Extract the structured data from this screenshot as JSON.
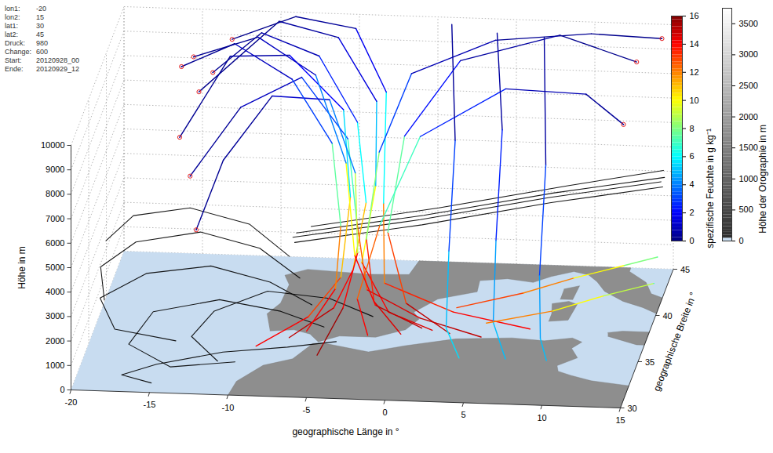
{
  "chart_data": {
    "type": "trajectory",
    "xlabel": "geographische Länge in °",
    "ylabel": "geographische Breite in °",
    "zlabel": "Höhe in m",
    "xlim": [
      -20,
      15
    ],
    "ylim": [
      30,
      45
    ],
    "zlim": [
      0,
      10000
    ],
    "xticks": [
      -20,
      -15,
      -10,
      -5,
      0,
      5,
      10,
      15
    ],
    "yticks": [
      30,
      35,
      40,
      45
    ],
    "zticks": [
      0,
      1000,
      2000,
      3000,
      4000,
      5000,
      6000,
      7000,
      8000,
      9000,
      10000
    ],
    "grid": true,
    "info": [
      {
        "label": "lon1:",
        "value": "-20"
      },
      {
        "label": "lon2:",
        "value": "15"
      },
      {
        "label": "lat1:",
        "value": "30"
      },
      {
        "label": "lat2:",
        "value": "45"
      },
      {
        "label": "Druck:",
        "value": "980"
      },
      {
        "label": "Change:",
        "value": "600"
      },
      {
        "label": "Start:",
        "value": "20120928_00"
      },
      {
        "label": "Ende:",
        "value": "20120929_12"
      }
    ],
    "colorbar": {
      "label": "spezifische Feuchte in g kg⁻¹",
      "lim": [
        0,
        16
      ],
      "ticks": [
        0,
        2,
        4,
        6,
        8,
        10,
        12,
        14,
        16
      ]
    },
    "orography_colorbar": {
      "label": "Höhe der Orographie in m",
      "lim": [
        0,
        3750
      ],
      "ticks": [
        0,
        500,
        1000,
        1500,
        2000,
        2500,
        3000,
        3500
      ]
    },
    "land": [
      [
        [
          -10,
          30
        ],
        [
          -9.8,
          31.5
        ],
        [
          -8.5,
          33.3
        ],
        [
          -6.8,
          34.1
        ],
        [
          -5.9,
          35.8
        ],
        [
          -5.3,
          35.9
        ],
        [
          -2.2,
          35.1
        ],
        [
          0,
          35.9
        ],
        [
          3,
          36.8
        ],
        [
          6.5,
          37.1
        ],
        [
          8.6,
          36.9
        ],
        [
          10.3,
          37.3
        ],
        [
          11,
          36.9
        ],
        [
          10.5,
          36.2
        ],
        [
          11.1,
          35.2
        ],
        [
          10,
          34.3
        ],
        [
          10.2,
          33.7
        ],
        [
          11.1,
          33.3
        ],
        [
          12.5,
          32.8
        ],
        [
          15,
          32.4
        ],
        [
          15,
          30
        ]
      ],
      [
        [
          -8.9,
          37
        ],
        [
          -7.4,
          37.2
        ],
        [
          -6.3,
          36.8
        ],
        [
          -5.6,
          36
        ],
        [
          -4.4,
          36.7
        ],
        [
          -2.1,
          36.7
        ],
        [
          -0.4,
          37.6
        ],
        [
          0.2,
          38.8
        ],
        [
          -0.3,
          39.5
        ],
        [
          0.9,
          41
        ],
        [
          3.2,
          41.9
        ],
        [
          3.1,
          43.1
        ],
        [
          4.8,
          43.4
        ],
        [
          6.5,
          43.1
        ],
        [
          7.5,
          43.8
        ],
        [
          8.8,
          44.4
        ],
        [
          9.8,
          44.1
        ],
        [
          10.5,
          43.4
        ],
        [
          11.2,
          42.4
        ],
        [
          12.6,
          41.4
        ],
        [
          14,
          40.8
        ],
        [
          15,
          40.2
        ],
        [
          15,
          41.9
        ],
        [
          14.2,
          42.3
        ],
        [
          13.6,
          43.5
        ],
        [
          12.3,
          44.6
        ],
        [
          12.3,
          45
        ],
        [
          -1.2,
          45
        ],
        [
          -1.5,
          43.5
        ],
        [
          -4,
          43.4
        ],
        [
          -8,
          43.7
        ],
        [
          -9.3,
          43
        ],
        [
          -8.8,
          42
        ],
        [
          -8.9,
          40
        ],
        [
          -9.5,
          38.8
        ]
      ],
      [
        [
          12.4,
          38
        ],
        [
          13.3,
          38.2
        ],
        [
          15,
          38.2
        ],
        [
          15,
          36.8
        ],
        [
          14.5,
          36.8
        ],
        [
          12.5,
          37.6
        ]
      ],
      [
        [
          8.4,
          39
        ],
        [
          9.6,
          39.2
        ],
        [
          9.8,
          40.9
        ],
        [
          9.2,
          41.2
        ],
        [
          8.2,
          40.9
        ],
        [
          8.4,
          39.9
        ]
      ],
      [
        [
          8.6,
          41.4
        ],
        [
          9.4,
          41.4
        ],
        [
          9.5,
          42.9
        ],
        [
          8.6,
          42.5
        ]
      ]
    ],
    "trajectories": [
      {
        "color": "black",
        "lon": [
          -6,
          -9,
          -13,
          -17,
          -19.5,
          -18,
          -14
        ],
        "lat": [
          36,
          37.5,
          38.5,
          38,
          36,
          33.5,
          33
        ],
        "height": [
          1500,
          1800,
          2000,
          1800,
          1500,
          1200,
          1000
        ]
      },
      {
        "color": "black",
        "lon": [
          -5,
          -8,
          -12,
          -16,
          -17,
          -14,
          -10
        ],
        "lat": [
          35,
          36,
          36.5,
          35.5,
          33,
          31.5,
          32
        ],
        "height": [
          1000,
          1200,
          1400,
          1200,
          800,
          500,
          600
        ]
      },
      {
        "color": "black",
        "lon": [
          -7,
          -10,
          -14,
          -18,
          -19.8,
          -19
        ],
        "lat": [
          37,
          39,
          40,
          39.5,
          37.5,
          35
        ],
        "height": [
          2200,
          2600,
          2800,
          2500,
          2200,
          1800
        ]
      },
      {
        "color": "black",
        "lon": [
          -4,
          -7,
          -11,
          -15,
          -17,
          -15
        ],
        "lat": [
          34,
          33.5,
          33,
          32,
          31,
          30.5
        ],
        "height": [
          800,
          700,
          600,
          400,
          300,
          200
        ]
      },
      {
        "color": "black",
        "lon": [
          -8,
          -11,
          -15,
          -18.5,
          -19.8
        ],
        "lat": [
          38.5,
          40.5,
          41.5,
          41,
          39
        ],
        "height": [
          2500,
          3000,
          3200,
          3000,
          2700
        ]
      },
      {
        "color": "black",
        "lon": [
          -2,
          -5,
          -9,
          -12,
          -13,
          -11
        ],
        "lat": [
          35.5,
          36.5,
          36.8,
          35,
          33,
          31.5
        ],
        "height": [
          1300,
          1600,
          1700,
          1500,
          1200,
          800
        ]
      },
      {
        "lon": [
          -7,
          -4.5,
          -3.5,
          -3,
          -4,
          -7,
          -11,
          -14
        ],
        "lat": [
          34,
          35.5,
          36.5,
          38,
          40,
          42.5,
          44,
          43.5
        ],
        "height": [
          900,
          1600,
          2800,
          5000,
          7500,
          9200,
          9500,
          8000
        ],
        "q": [
          15,
          14,
          11,
          6,
          2.5,
          0.8,
          0.3,
          0.2
        ],
        "marker": "circle"
      },
      {
        "lon": [
          2,
          -1,
          -3,
          -2.5,
          -3,
          -6,
          -10,
          -15
        ],
        "lat": [
          34.5,
          35.5,
          36.8,
          38.5,
          41,
          43.5,
          44.5,
          44
        ],
        "height": [
          1200,
          1500,
          3000,
          5500,
          8000,
          9600,
          9800,
          7000
        ],
        "q": [
          14.5,
          14,
          10,
          5,
          1.5,
          0.5,
          0.2,
          0.2
        ],
        "marker": "circle"
      },
      {
        "lon": [
          5,
          1,
          -2.5,
          -3.5,
          -4.5,
          -8,
          -12,
          -15
        ],
        "lat": [
          35,
          35.5,
          36,
          37.5,
          39.5,
          42,
          42.5,
          41.5
        ],
        "height": [
          800,
          1300,
          2200,
          4500,
          7000,
          8500,
          7000,
          4500
        ],
        "q": [
          15,
          14.5,
          12.5,
          7,
          3,
          1,
          0.4,
          0.3
        ],
        "marker": "circle"
      },
      {
        "lon": [
          -9,
          -6,
          -4.2,
          -4,
          -5,
          -9,
          -13,
          -16
        ],
        "lat": [
          33.5,
          35,
          36.2,
          38,
          40.5,
          43,
          44,
          43
        ],
        "height": [
          700,
          1400,
          2600,
          5200,
          7800,
          9000,
          8500,
          5500
        ],
        "q": [
          14,
          13,
          11,
          5.5,
          2,
          0.6,
          0.3,
          0.2
        ],
        "marker": "circle"
      },
      {
        "lon": [
          8,
          3,
          -1.5,
          -2,
          -2.5,
          -5,
          -9,
          -13
        ],
        "lat": [
          35.5,
          36,
          36.5,
          38.5,
          41.5,
          44,
          44.8,
          44.5
        ],
        "height": [
          1000,
          1400,
          2300,
          4800,
          8200,
          9800,
          9900,
          9000
        ],
        "q": [
          14,
          13.5,
          12,
          6,
          1.8,
          0.4,
          0.2,
          0.2
        ],
        "marker": "circle"
      },
      {
        "lon": [
          -5,
          -3.8,
          -3.2,
          -3.8,
          -6,
          -10,
          -13,
          -14.5
        ],
        "lat": [
          33,
          35,
          36.5,
          38.5,
          41,
          42.5,
          42,
          41
        ],
        "height": [
          600,
          1800,
          3500,
          6000,
          8000,
          7500,
          5000,
          2500
        ],
        "q": [
          15.5,
          14,
          9,
          4,
          1.2,
          0.4,
          0.3,
          0.2
        ],
        "marker": "circle"
      },
      {
        "lon": [
          0,
          -2,
          -2.8,
          -2.5,
          -1,
          4,
          10,
          14.5
        ],
        "lat": [
          34.5,
          35.8,
          37.2,
          39.5,
          42,
          43.5,
          44,
          44
        ],
        "height": [
          1000,
          1800,
          3800,
          6500,
          8800,
          9700,
          9900,
          9800
        ],
        "q": [
          14.5,
          13.5,
          8,
          3,
          0.8,
          0.3,
          0.2,
          0.1
        ],
        "marker": "circle"
      },
      {
        "lon": [
          3,
          0,
          -1.5,
          -1,
          2,
          8,
          13
        ],
        "lat": [
          35,
          36,
          37.5,
          40,
          42.5,
          44,
          43.5
        ],
        "height": [
          900,
          1700,
          4000,
          7000,
          9200,
          9800,
          9000
        ],
        "q": [
          15,
          13,
          7.5,
          2.2,
          0.5,
          0.2,
          0.2
        ],
        "marker": "circle"
      },
      {
        "lon": [
          -2,
          -3,
          -2,
          0,
          5,
          10,
          12.5
        ],
        "lat": [
          34,
          35.5,
          37.5,
          40,
          42,
          42.5,
          42
        ],
        "height": [
          1100,
          2000,
          4300,
          7000,
          8300,
          8000,
          7000
        ],
        "q": [
          14,
          12.5,
          7,
          2.5,
          0.8,
          0.4,
          0.3
        ],
        "marker": "circle"
      },
      {
        "lon": [
          -6,
          -4.5,
          -4.5,
          -5.5,
          -8.5,
          -12.5,
          -16
        ],
        "lat": [
          34.5,
          36,
          37.5,
          39.5,
          41.5,
          43,
          43.5
        ],
        "height": [
          1000,
          2200,
          4200,
          6800,
          8600,
          9400,
          8200
        ],
        "q": [
          14,
          12,
          7.5,
          3,
          1,
          0.3,
          0.2
        ],
        "marker": "circle"
      },
      {
        "lon": [
          1,
          -2,
          -3.5,
          -4.5,
          -7,
          -11,
          -15
        ],
        "lat": [
          36,
          36.2,
          37,
          39,
          41.5,
          43,
          42.5
        ],
        "height": [
          700,
          1500,
          3200,
          6200,
          8800,
          9700,
          9000
        ],
        "q": [
          15,
          14,
          10,
          4,
          1,
          0.3,
          0.2
        ],
        "marker": "circle"
      },
      {
        "lon": [
          4,
          5,
          5.5,
          6,
          7
        ],
        "lat": [
          44,
          41,
          37,
          34,
          33
        ],
        "height": [
          9800,
          7000,
          4000,
          1800,
          700
        ],
        "q": [
          0.5,
          2.5,
          4.5,
          5,
          5
        ]
      },
      {
        "lon": [
          1,
          2,
          2.5,
          3,
          4
        ],
        "lat": [
          44.5,
          41,
          37,
          34,
          33.2
        ],
        "height": [
          9900,
          6500,
          3500,
          1500,
          600
        ],
        "q": [
          0.4,
          3,
          5,
          5.5,
          5.5
        ]
      },
      {
        "lon": [
          7,
          8,
          8.5,
          9,
          9.5
        ],
        "lat": [
          44,
          40,
          36,
          34,
          33.5
        ],
        "height": [
          9700,
          6000,
          3000,
          1200,
          500
        ],
        "q": [
          0.5,
          3,
          4.5,
          5,
          5
        ]
      },
      {
        "lon": [
          3,
          7,
          10,
          13,
          15
        ],
        "lat": [
          37,
          38,
          39,
          40,
          40.5
        ],
        "height": [
          1200,
          1500,
          1800,
          2000,
          2200
        ],
        "q": [
          13,
          12,
          10,
          8,
          7
        ]
      },
      {
        "lon": [
          5,
          9,
          12,
          15
        ],
        "lat": [
          36.5,
          37.5,
          38.5,
          39.5
        ],
        "height": [
          800,
          1000,
          1300,
          1500
        ],
        "q": [
          12,
          10,
          9,
          6
        ]
      },
      {
        "color": "black",
        "lon": [
          -8,
          0,
          8,
          15
        ],
        "lat": [
          40,
          40.5,
          41.5,
          42
        ],
        "height": [
          2500,
          3200,
          3900,
          4500
        ]
      },
      {
        "color": "black",
        "lon": [
          -8,
          0,
          8,
          15
        ],
        "lat": [
          40.5,
          41,
          42,
          42.5
        ],
        "height": [
          2700,
          3400,
          4100,
          4700
        ]
      },
      {
        "color": "black",
        "lon": [
          -8,
          0,
          8,
          15
        ],
        "lat": [
          39.5,
          40,
          41,
          41.5
        ],
        "height": [
          2900,
          3600,
          4300,
          4900
        ]
      },
      {
        "color": "black",
        "lon": [
          -7,
          1,
          9,
          15
        ],
        "lat": [
          40.2,
          40.8,
          41.8,
          42.2
        ],
        "height": [
          3100,
          3800,
          4500,
          5100
        ]
      }
    ]
  }
}
